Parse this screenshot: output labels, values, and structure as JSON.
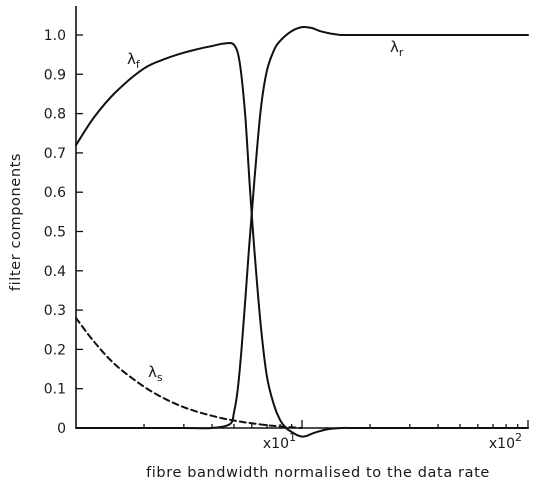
{
  "chart_data": {
    "type": "line",
    "xlabel": "fibre bandwidth normalised to the data rate",
    "ylabel": "filter components",
    "x_scale": "log",
    "xlim": [
      1,
      100
    ],
    "ylim": [
      0,
      1.05
    ],
    "y_ticks": [
      "0",
      "0.1",
      "0.2",
      "0.3",
      "0.4",
      "0.5",
      "0.6",
      "0.7",
      "0.8",
      "0.9",
      "1.0"
    ],
    "x_tick_labels": [
      {
        "x": 10,
        "base": "x10",
        "exp": "1"
      },
      {
        "x": 100,
        "base": "x10",
        "exp": "2"
      }
    ],
    "series": [
      {
        "name": "λf",
        "label_main": "λ",
        "label_sub": "f",
        "style": "solid",
        "x": [
          1.0,
          1.2,
          1.5,
          2.0,
          2.5,
          3.0,
          3.5,
          4.0,
          4.5,
          5.0,
          5.3,
          5.6,
          5.9,
          6.2,
          6.6,
          7.0,
          7.5,
          8.0,
          8.5,
          9.0,
          9.5,
          10.0,
          10.5,
          11.0,
          12.0,
          13.0,
          15.0,
          17.0,
          20.0,
          30.0,
          50.0,
          100.0
        ],
        "y": [
          0.72,
          0.79,
          0.855,
          0.915,
          0.94,
          0.955,
          0.965,
          0.972,
          0.978,
          0.975,
          0.93,
          0.8,
          0.6,
          0.43,
          0.25,
          0.13,
          0.06,
          0.02,
          0.0,
          -0.01,
          -0.018,
          -0.022,
          -0.02,
          -0.015,
          -0.008,
          -0.003,
          0.0,
          0.0,
          0.0,
          0.0,
          0.0,
          0.0
        ]
      },
      {
        "name": "λr",
        "label_main": "λ",
        "label_sub": "r",
        "style": "solid",
        "x": [
          1.0,
          2.0,
          3.0,
          4.0,
          4.8,
          5.0,
          5.2,
          5.4,
          5.6,
          5.8,
          6.0,
          6.3,
          6.6,
          7.0,
          7.5,
          8.0,
          9.0,
          10.0,
          11.0,
          12.0,
          13.0,
          14.0,
          15.0,
          17.0,
          20.0,
          30.0,
          50.0,
          100.0
        ],
        "y": [
          0.0,
          0.0,
          0.0,
          0.0,
          0.01,
          0.04,
          0.1,
          0.2,
          0.32,
          0.44,
          0.55,
          0.7,
          0.82,
          0.91,
          0.96,
          0.985,
          1.01,
          1.02,
          1.018,
          1.01,
          1.005,
          1.002,
          1.0,
          1.0,
          1.0,
          1.0,
          1.0,
          1.0
        ]
      },
      {
        "name": "λs",
        "label_main": "λ",
        "label_sub": "s",
        "style": "dashed",
        "x": [
          1.0,
          1.2,
          1.5,
          2.0,
          2.5,
          3.0,
          3.5,
          4.0,
          4.5,
          5.0,
          5.5,
          6.0,
          7.0,
          8.0,
          9.0,
          10.0
        ],
        "y": [
          0.28,
          0.22,
          0.16,
          0.105,
          0.073,
          0.053,
          0.04,
          0.031,
          0.024,
          0.019,
          0.015,
          0.012,
          0.007,
          0.004,
          0.002,
          0.0
        ]
      }
    ]
  }
}
